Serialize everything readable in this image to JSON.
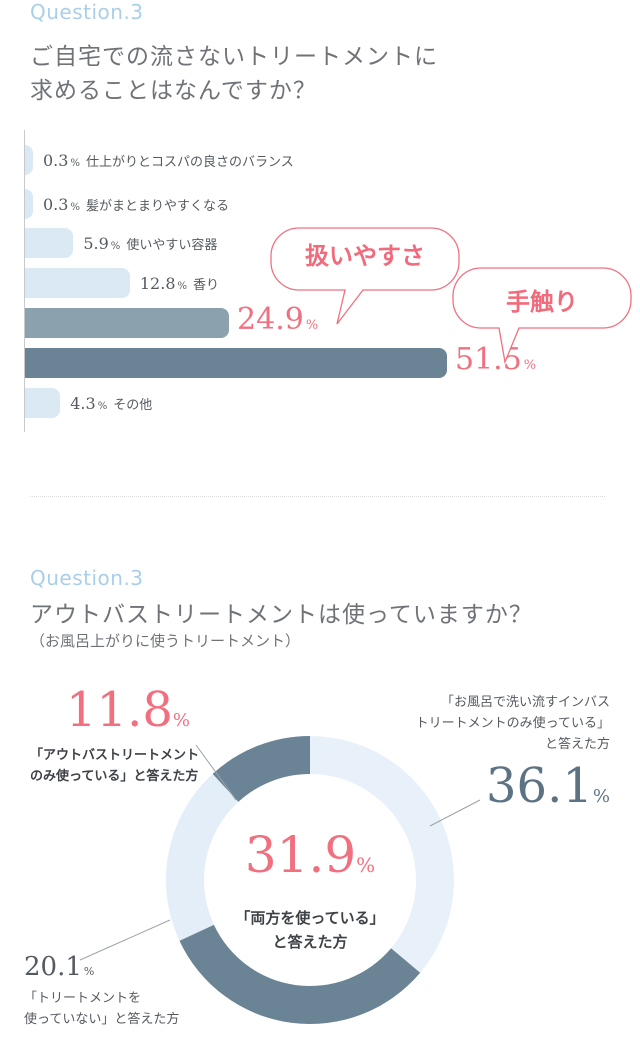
{
  "section1": {
    "label": "Question.3",
    "title_line1": "ご自宅での流さないトリートメントに",
    "title_line2": "求めることはなんですか？"
  },
  "section2": {
    "label": "Question.3",
    "title": "アウトバストリートメントは使っていますか？",
    "subtitle": "（お風呂上がりに使うトリートメント）"
  },
  "callouts": {
    "bubble1": "扱いやすさ",
    "bubble2": "手触り"
  },
  "donut_center": {
    "value": "31.9",
    "pct": "%",
    "line1": "「両方を使っている」",
    "line2": "と答えた方"
  },
  "donut_annotations": {
    "a118": {
      "value": "11.8",
      "pct": "%",
      "line1": "「アウトバストリートメント",
      "line2": "のみ使っている」と答えた方"
    },
    "a361": {
      "value": "36.1",
      "pct": "%",
      "line1": "「お風呂で洗い流すインバス",
      "line2": "トリートメントのみ使っている」",
      "line3": "と答えた方"
    },
    "a201": {
      "value": "20.1",
      "pct": "%",
      "line1": "「トリートメントを",
      "line2": "使っていない」と答えた方"
    }
  },
  "colors": {
    "light_bar": "#dbe9f4",
    "mid_bar": "#8ca1ae",
    "dark_bar": "#6a8495",
    "accent_red": "#f07080",
    "donut_light": "#e8f1f9",
    "donut_dark": "#6a8495"
  },
  "chart_data": [
    {
      "type": "bar",
      "orientation": "horizontal",
      "categories": [
        "仕上がりとコスパの良さのバランス",
        "髪がまとまりやすくなる",
        "使いやすい容器",
        "香り",
        "扱いやすさ",
        "手触り",
        "その他"
      ],
      "values": [
        0.3,
        0.3,
        5.9,
        12.8,
        24.9,
        51.5,
        4.3
      ],
      "value_labels": [
        "0.3",
        "0.3",
        "5.9",
        "12.8",
        "24.9",
        "51.5",
        "4.3"
      ],
      "unit": "%",
      "xlim": [
        0,
        55
      ],
      "grid": false
    },
    {
      "type": "pie",
      "donut": true,
      "slices": [
        {
          "label": "両方を使っている",
          "value": 31.9
        },
        {
          "label": "お風呂で洗い流すインバストリートメントのみ使っている",
          "value": 36.1
        },
        {
          "label": "アウトバストリートメントのみ使っている",
          "value": 11.8
        },
        {
          "label": "トリートメントを使っていない",
          "value": 20.1
        }
      ],
      "unit": "%"
    }
  ]
}
